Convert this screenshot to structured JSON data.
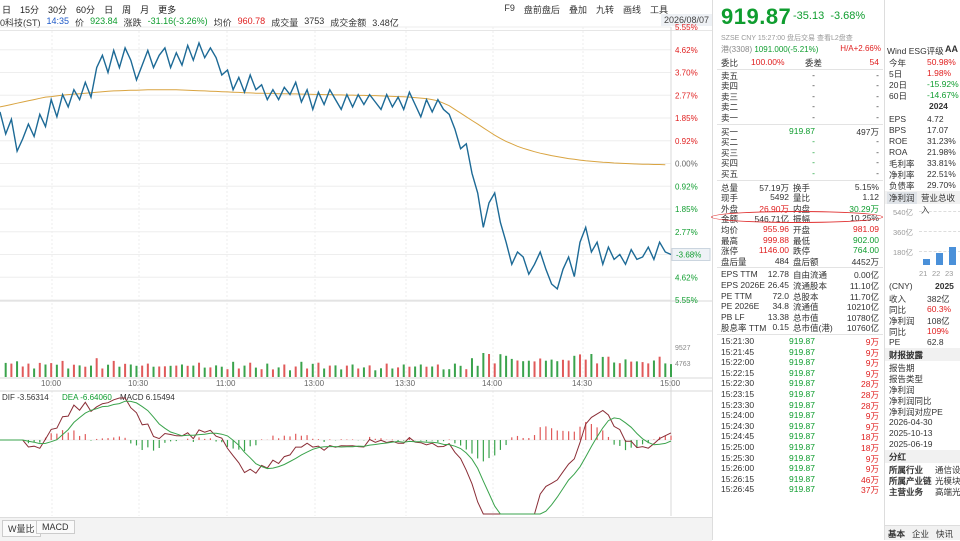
{
  "toolbar": {
    "periods": [
      "日",
      "15分",
      "30分",
      "60分",
      "日",
      "周",
      "月",
      "更多"
    ],
    "stock_label": "0科技(ST)",
    "time": "14:35",
    "price_label": "价",
    "price": "923.84",
    "change_label": "涨跌",
    "change": "-31.16(-3.26%)",
    "avg_label": "均价",
    "avg": "960.78",
    "volume_label": "成交量",
    "volume": "3753",
    "amount_label": "成交金额",
    "amount": "3.48亿",
    "right_items": [
      "F9",
      "盘前盘后",
      "叠加",
      "九转",
      "画线",
      "工具"
    ],
    "date": "2026/08/07"
  },
  "chart_data": {
    "type": "line",
    "title": "",
    "x_ticks": [
      "10:00",
      "10:30",
      "11:00",
      "13:00",
      "13:30",
      "14:00",
      "14:30",
      "15:00"
    ],
    "y_right_labels": [
      "5.55%",
      "4.62%",
      "3.70%",
      "2.77%",
      "1.85%",
      "0.92%",
      "0.00%",
      "0.92%",
      "1.85%",
      "2.77%",
      "3.70%",
      "4.62%",
      "5.55%"
    ],
    "y_pct_min": -5.55,
    "y_pct_max": 5.55,
    "last_pct_label": "-3.68%",
    "price_pct": [
      2.1,
      1.2,
      1.8,
      0.5,
      1.0,
      1.6,
      1.1,
      2.0,
      1.5,
      2.6,
      1.9,
      2.8,
      2.3,
      3.0,
      2.6,
      3.3,
      2.7,
      3.9,
      4.4,
      3.7,
      4.6,
      3.9,
      4.7,
      4.2,
      3.4,
      4.0,
      4.6,
      3.9,
      4.4,
      4.7,
      3.9,
      4.5,
      4.0,
      4.8,
      4.2,
      4.9,
      4.3,
      4.7,
      4.3,
      3.6,
      3.8,
      3.0,
      3.5,
      2.9,
      3.6,
      3.0,
      3.2,
      2.6,
      3.0,
      2.6,
      3.1,
      2.8,
      3.3,
      2.5,
      3.0,
      2.2,
      2.9,
      2.4,
      3.0,
      2.6,
      2.2,
      2.8,
      2.3,
      2.8,
      2.4,
      2.8,
      2.5,
      2.2,
      2.8,
      2.3,
      2.7,
      2.2,
      2.9,
      2.4,
      1.9,
      2.6,
      2.1,
      2.6,
      2.2,
      2.0,
      1.4,
      0.6,
      0.8,
      -0.4,
      -1.2,
      -2.6,
      -1.6,
      -1.2,
      -2.4,
      -3.2,
      -4.1,
      -3.6,
      -3.8,
      -4.5,
      -4.1,
      -3.6,
      -4.3,
      -4.9,
      -5.1,
      -4.3,
      -3.8,
      -4.6,
      -3.2,
      -2.6,
      -3.6,
      -3.2,
      -4.1,
      -3.4,
      -3.9,
      -3.7,
      -4.1,
      -3.5,
      -3.9,
      -3.8,
      -3.4,
      -3.9,
      -3.2,
      -3.6,
      -3.7
    ],
    "avg_pct": [
      2.3,
      2.35,
      2.4,
      2.45,
      2.5,
      2.55,
      2.6,
      2.65,
      2.7,
      2.72,
      2.75,
      2.78,
      2.8,
      2.82,
      2.84,
      2.86,
      2.88,
      2.9,
      2.92,
      2.94,
      2.95,
      2.96,
      2.97,
      2.98,
      2.98,
      2.99,
      3.0,
      3.0,
      3.0,
      3.0,
      3.0,
      3.0,
      2.99,
      2.98,
      2.97,
      2.96,
      2.95,
      2.94,
      2.93,
      2.92,
      2.91,
      2.9,
      2.89,
      2.88,
      2.87,
      2.86,
      2.86,
      2.85,
      2.85,
      2.84,
      2.84,
      2.83,
      2.83,
      2.82,
      2.82,
      2.81,
      2.81,
      2.8,
      2.8,
      2.79,
      2.79,
      2.78,
      2.78,
      2.77,
      2.77,
      2.76,
      2.76,
      2.75,
      2.74,
      2.73,
      2.72,
      2.71,
      2.7,
      2.68,
      2.66,
      2.64,
      2.6,
      2.55,
      2.45,
      2.35,
      2.2,
      2.05,
      1.9,
      1.75,
      1.6,
      1.45,
      1.3,
      1.15,
      1.02,
      0.9,
      0.8,
      0.7,
      0.62,
      0.55,
      0.48,
      0.42,
      0.37,
      0.32,
      0.28,
      0.24,
      0.2,
      0.17,
      0.14,
      0.11,
      0.09,
      0.07,
      0.05,
      0.04,
      0.02,
      0.01,
      0.0,
      -0.01,
      -0.02,
      -0.03,
      -0.03,
      -0.04,
      -0.04,
      -0.05
    ],
    "volume_labels": [
      "9527",
      "4763"
    ],
    "macd_legend": {
      "dif": "DIF -3.56314",
      "dea": "DEA -6.64060",
      "macd": "MACD 6.15494"
    }
  },
  "bottom_tabs": [
    "W量比",
    "MACD"
  ],
  "quote": {
    "price": "919.87",
    "change": "-35.13",
    "change_pct": "-3.68%",
    "meta": "SZSE  CNY  15:27:00  盘后交易  查看L2盘查",
    "hk_code": "港(3308)",
    "hk_price": "1091.000(-5.21%)",
    "hk_ah": "H/A+2.66%",
    "weibi": {
      "label": "委比",
      "value": "100.00%",
      "label2": "委差",
      "value2": "54"
    },
    "asks": [
      {
        "label": "卖五",
        "price": "-",
        "vol": "-"
      },
      {
        "label": "卖四",
        "price": "-",
        "vol": "-"
      },
      {
        "label": "卖三",
        "price": "-",
        "vol": "-"
      },
      {
        "label": "卖二",
        "price": "-",
        "vol": "-"
      },
      {
        "label": "卖一",
        "price": "-",
        "vol": "-"
      }
    ],
    "bids": [
      {
        "label": "买一",
        "price": "919.87",
        "vol": "497万"
      },
      {
        "label": "买二",
        "price": "-",
        "vol": "-"
      },
      {
        "label": "买三",
        "price": "-",
        "vol": "-"
      },
      {
        "label": "买四",
        "price": "-",
        "vol": "-"
      },
      {
        "label": "买五",
        "price": "-",
        "vol": "-"
      }
    ],
    "stats": [
      {
        "l1": "总量",
        "v1": "57.19万",
        "l2": "换手",
        "v2": "5.15%"
      },
      {
        "l1": "现手",
        "v1": "5492",
        "l2": "量比",
        "v2": "1.12"
      },
      {
        "l1": "外盘",
        "v1": "26.90万",
        "l2": "内盘",
        "v2": "30.29万"
      },
      {
        "l1": "金额",
        "v1": "546.71亿",
        "l2": "振幅",
        "v2": "10.25%"
      },
      {
        "l1": "均价",
        "v1": "955.96",
        "l2": "开盘",
        "v2": "981.09"
      },
      {
        "l1": "最高",
        "v1": "999.88",
        "l2": "最低",
        "v2": "902.00"
      },
      {
        "l1": "涨停",
        "v1": "1146.00",
        "l2": "跌停",
        "v2": "764.00"
      },
      {
        "l1": "盘后量",
        "v1": "484",
        "l2": "盘后额",
        "v2": "4452万"
      },
      {
        "l1": "EPS TTM",
        "v1": "12.78",
        "l2": "自由流通",
        "v2": "0.00亿"
      },
      {
        "l1": "EPS 2026E",
        "v1": "26.45",
        "l2": "流通股本",
        "v2": "11.10亿"
      },
      {
        "l1": "PE TTM",
        "v1": "72.0",
        "l2": "总股本",
        "v2": "11.70亿"
      },
      {
        "l1": "PE 2026E",
        "v1": "34.8",
        "l2": "流通值",
        "v2": "10210亿"
      },
      {
        "l1": "PB LF",
        "v1": "13.38",
        "l2": "总市值",
        "v2": "10780亿"
      },
      {
        "l1": "股息率 TTM",
        "v1": "0.15",
        "l2": "总市值(港)",
        "v2": "10760亿"
      }
    ],
    "ticks": [
      {
        "t": "15:21:30",
        "p": "919.87",
        "v": "9万"
      },
      {
        "t": "15:21:45",
        "p": "919.87",
        "v": "9万"
      },
      {
        "t": "15:22:00",
        "p": "919.87",
        "v": "9万"
      },
      {
        "t": "15:22:15",
        "p": "919.87",
        "v": "9万"
      },
      {
        "t": "15:22:30",
        "p": "919.87",
        "v": "28万"
      },
      {
        "t": "15:23:15",
        "p": "919.87",
        "v": "28万"
      },
      {
        "t": "15:23:30",
        "p": "919.87",
        "v": "28万"
      },
      {
        "t": "15:24:00",
        "p": "919.87",
        "v": "9万"
      },
      {
        "t": "15:24:30",
        "p": "919.87",
        "v": "9万"
      },
      {
        "t": "15:24:45",
        "p": "919.87",
        "v": "18万"
      },
      {
        "t": "15:25:00",
        "p": "919.87",
        "v": "18万"
      },
      {
        "t": "15:25:30",
        "p": "919.87",
        "v": "9万"
      },
      {
        "t": "15:26:00",
        "p": "919.87",
        "v": "9万"
      },
      {
        "t": "15:26:15",
        "p": "919.87",
        "v": "46万"
      },
      {
        "t": "15:26:45",
        "p": "919.87",
        "v": "37万"
      }
    ]
  },
  "side": {
    "header": "Wind ESG评级",
    "rating": "AA",
    "perf": [
      {
        "l": "今年",
        "v": "50.98%"
      },
      {
        "l": "5日",
        "v": "1.98%"
      },
      {
        "l": "20日",
        "v": "-15.92%"
      },
      {
        "l": "60日",
        "v": "-14.67%"
      }
    ],
    "year": "2024",
    "fin": [
      {
        "l": "EPS",
        "v": "4.72"
      },
      {
        "l": "BPS",
        "v": "17.07"
      },
      {
        "l": "ROE",
        "v": "31.23%"
      },
      {
        "l": "ROA",
        "v": "21.98%"
      },
      {
        "l": "毛利率",
        "v": "33.81%"
      },
      {
        "l": "净利率",
        "v": "22.51%"
      },
      {
        "l": "负债率",
        "v": "29.70%"
      }
    ],
    "tabs": [
      "净利润",
      "营业总收入"
    ],
    "mini_y": [
      "540亿",
      "360亿",
      "180亿"
    ],
    "mini_x": [
      "21",
      "22",
      "23"
    ],
    "cny_label": "(CNY)",
    "cny_year": "2025",
    "fin2": [
      {
        "l": "收入",
        "v": "382亿"
      },
      {
        "l": "同比",
        "v": "60.3%"
      },
      {
        "l": "净利润",
        "v": "108亿"
      },
      {
        "l": "同比",
        "v": "109%"
      },
      {
        "l": "PE",
        "v": "62.8"
      }
    ],
    "report_title": "财报披露",
    "report_items": [
      "报告期",
      "报告类型",
      "净利润",
      "净利润同比",
      "净利润对应PE"
    ],
    "dates": [
      "2026-04-30",
      "2025-10-13",
      "2025-06-19"
    ],
    "div_title": "分红",
    "industry": [
      {
        "l": "所属行业",
        "v": "通信设备"
      },
      {
        "l": "所属产业链",
        "v": "光模块"
      },
      {
        "l": "主营业务",
        "v": "高端光"
      }
    ],
    "bottom_tabs": [
      "基本",
      "企业",
      "快讯"
    ]
  }
}
